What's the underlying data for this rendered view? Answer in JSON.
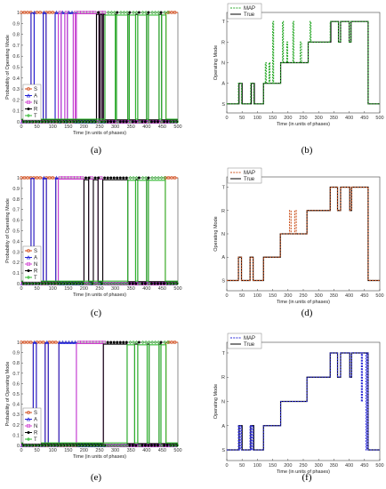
{
  "chart_data": [
    {
      "panel": "(a)",
      "type": "line",
      "xlabel": "Time (in units of phases)",
      "ylabel": "Probability of Operating Mode",
      "xlim": [
        0,
        500
      ],
      "ylim": [
        0,
        1
      ],
      "xticks": [
        "0",
        "50",
        "100",
        "150",
        "200",
        "250",
        "300",
        "350",
        "400",
        "450",
        "500"
      ],
      "yticks": [
        "0",
        "0.1",
        "0.2",
        "0.3",
        "0.4",
        "0.5",
        "0.6",
        "0.7",
        "0.8",
        "0.9",
        "1"
      ],
      "legend_position": "bottom-left",
      "legend": [
        {
          "label": "S",
          "color": "#d04a1a",
          "marker": "circle"
        },
        {
          "label": "A",
          "color": "#1f1fd8",
          "marker": "triangle"
        },
        {
          "label": "N",
          "color": "#d040d0",
          "marker": "square"
        },
        {
          "label": "R",
          "color": "#000000",
          "marker": "dot"
        },
        {
          "label": "T",
          "color": "#2eb82e",
          "marker": "diamond"
        }
      ],
      "mode_segments": [
        [
          0,
          "S"
        ],
        [
          31,
          "A"
        ],
        [
          41,
          "S"
        ],
        [
          70,
          "A"
        ],
        [
          79,
          "S"
        ],
        [
          108,
          "A"
        ],
        [
          118,
          "N"
        ],
        [
          127,
          "A"
        ],
        [
          139,
          "N"
        ],
        [
          147,
          "A"
        ],
        [
          166,
          "N"
        ],
        [
          172,
          "A"
        ],
        [
          176,
          "N"
        ],
        [
          240,
          "R"
        ],
        [
          248,
          "N"
        ],
        [
          252,
          "R"
        ],
        [
          258,
          "N"
        ],
        [
          262,
          "R"
        ],
        [
          267,
          "T"
        ],
        [
          300,
          "R"
        ],
        [
          304,
          "T"
        ],
        [
          340,
          "R"
        ],
        [
          345,
          "T"
        ],
        [
          365,
          "R"
        ],
        [
          372,
          "T"
        ],
        [
          400,
          "R"
        ],
        [
          406,
          "T"
        ],
        [
          440,
          "R"
        ],
        [
          448,
          "T"
        ],
        [
          462,
          "S"
        ],
        [
          500,
          null
        ]
      ]
    },
    {
      "panel": "(b)",
      "type": "line",
      "xlabel": "Time (in units of phases)",
      "ylabel": "Operating Mode",
      "xlim": [
        0,
        500
      ],
      "yticks": [
        "S",
        "A",
        "N",
        "R",
        "T"
      ],
      "xticks": [
        "0",
        "50",
        "100",
        "150",
        "200",
        "250",
        "300",
        "350",
        "400",
        "450",
        "500"
      ],
      "legend_position": "top-left",
      "legend": [
        {
          "label": "MAP",
          "color": "#2eaa2e",
          "style": "dashed"
        },
        {
          "label": "True",
          "color": "#000000",
          "style": "solid"
        }
      ],
      "series": [
        {
          "name": "True",
          "segments": [
            [
              0,
              "S"
            ],
            [
              40,
              "A"
            ],
            [
              50,
              "S"
            ],
            [
              80,
              "A"
            ],
            [
              90,
              "S"
            ],
            [
              120,
              "A"
            ],
            [
              176,
              "N"
            ],
            [
              266,
              "R"
            ],
            [
              340,
              "T"
            ],
            [
              365,
              "R"
            ],
            [
              372,
              "T"
            ],
            [
              400,
              "R"
            ],
            [
              406,
              "T"
            ],
            [
              462,
              "S"
            ],
            [
              500,
              null
            ]
          ]
        },
        {
          "name": "MAP",
          "segments": [
            [
              0,
              "S"
            ],
            [
              38,
              "A"
            ],
            [
              48,
              "S"
            ],
            [
              78,
              "A"
            ],
            [
              88,
              "S"
            ],
            [
              120,
              "A"
            ],
            [
              126,
              "N"
            ],
            [
              129,
              "A"
            ],
            [
              138,
              "N"
            ],
            [
              141,
              "A"
            ],
            [
              150,
              "T"
            ],
            [
              153,
              "A"
            ],
            [
              176,
              "N"
            ],
            [
              182,
              "T"
            ],
            [
              185,
              "N"
            ],
            [
              196,
              "R"
            ],
            [
              199,
              "N"
            ],
            [
              216,
              "T"
            ],
            [
              219,
              "N"
            ],
            [
              240,
              "R"
            ],
            [
              244,
              "N"
            ],
            [
              266,
              "R"
            ],
            [
              272,
              "T"
            ],
            [
              275,
              "R"
            ],
            [
              338,
              "T"
            ],
            [
              365,
              "R"
            ],
            [
              372,
              "T"
            ],
            [
              400,
              "R"
            ],
            [
              406,
              "T"
            ],
            [
              462,
              "S"
            ],
            [
              500,
              null
            ]
          ]
        }
      ]
    },
    {
      "panel": "(c)",
      "type": "line",
      "xlabel": "Time (in units of phases)",
      "ylabel": "Probability of Operating Mode",
      "xlim": [
        0,
        500
      ],
      "ylim": [
        0,
        1
      ],
      "xticks": [
        "0",
        "50",
        "100",
        "150",
        "200",
        "250",
        "300",
        "350",
        "400",
        "450",
        "500"
      ],
      "yticks": [
        "0",
        "0.1",
        "0.2",
        "0.3",
        "0.4",
        "0.5",
        "0.6",
        "0.7",
        "0.8",
        "0.9",
        "1"
      ],
      "legend_position": "bottom-left",
      "legend": [
        {
          "label": "S",
          "color": "#d04a1a",
          "marker": "circle"
        },
        {
          "label": "A",
          "color": "#1f1fd8",
          "marker": "triangle"
        },
        {
          "label": "N",
          "color": "#d040d0",
          "marker": "square"
        },
        {
          "label": "R",
          "color": "#000000",
          "marker": "dot"
        },
        {
          "label": "T",
          "color": "#2eb82e",
          "marker": "diamond"
        }
      ],
      "mode_segments": [
        [
          0,
          "S"
        ],
        [
          31,
          "A"
        ],
        [
          40,
          "S"
        ],
        [
          70,
          "A"
        ],
        [
          80,
          "S"
        ],
        [
          110,
          "A"
        ],
        [
          118,
          "N"
        ],
        [
          200,
          "R"
        ],
        [
          215,
          "N"
        ],
        [
          230,
          "R"
        ],
        [
          245,
          "N"
        ],
        [
          260,
          "R"
        ],
        [
          340,
          "T"
        ],
        [
          365,
          "R"
        ],
        [
          372,
          "T"
        ],
        [
          400,
          "R"
        ],
        [
          406,
          "T"
        ],
        [
          460,
          "S"
        ],
        [
          500,
          null
        ]
      ]
    },
    {
      "panel": "(d)",
      "type": "line",
      "xlabel": "Time (in units of phases)",
      "ylabel": "Operating Mode",
      "xlim": [
        0,
        500
      ],
      "yticks": [
        "S",
        "A",
        "N",
        "R",
        "T"
      ],
      "xticks": [
        "0",
        "50",
        "100",
        "150",
        "200",
        "250",
        "300",
        "350",
        "400",
        "450",
        "500"
      ],
      "legend_position": "top-left",
      "legend": [
        {
          "label": "MAP",
          "color": "#cc5522",
          "style": "dashed"
        },
        {
          "label": "True",
          "color": "#000000",
          "style": "solid"
        }
      ],
      "series": [
        {
          "name": "True",
          "segments": [
            [
              0,
              "S"
            ],
            [
              38,
              "A"
            ],
            [
              48,
              "S"
            ],
            [
              76,
              "A"
            ],
            [
              86,
              "S"
            ],
            [
              120,
              "A"
            ],
            [
              175,
              "N"
            ],
            [
              262,
              "R"
            ],
            [
              338,
              "T"
            ],
            [
              362,
              "R"
            ],
            [
              372,
              "T"
            ],
            [
              402,
              "R"
            ],
            [
              408,
              "T"
            ],
            [
              462,
              "S"
            ],
            [
              500,
              null
            ]
          ]
        },
        {
          "name": "MAP",
          "segments": [
            [
              0,
              "S"
            ],
            [
              38,
              "A"
            ],
            [
              48,
              "S"
            ],
            [
              76,
              "A"
            ],
            [
              86,
              "S"
            ],
            [
              120,
              "A"
            ],
            [
              175,
              "N"
            ],
            [
              205,
              "R"
            ],
            [
              210,
              "N"
            ],
            [
              222,
              "R"
            ],
            [
              227,
              "N"
            ],
            [
              262,
              "R"
            ],
            [
              338,
              "T"
            ],
            [
              362,
              "R"
            ],
            [
              372,
              "T"
            ],
            [
              402,
              "R"
            ],
            [
              408,
              "T"
            ],
            [
              462,
              "S"
            ],
            [
              500,
              null
            ]
          ]
        }
      ]
    },
    {
      "panel": "(e)",
      "type": "line",
      "xlabel": "Time (in units of phases)",
      "ylabel": "Probability of Operating Mode",
      "xlim": [
        0,
        500
      ],
      "ylim": [
        0,
        1
      ],
      "xticks": [
        "0",
        "50",
        "100",
        "150",
        "200",
        "250",
        "300",
        "350",
        "400",
        "450",
        "500"
      ],
      "yticks": [
        "0",
        "0.1",
        "0.2",
        "0.3",
        "0.4",
        "0.5",
        "0.6",
        "0.7",
        "0.8",
        "0.9",
        "1"
      ],
      "legend_position": "bottom-left",
      "legend": [
        {
          "label": "S",
          "color": "#d04a1a",
          "marker": "circle"
        },
        {
          "label": "A",
          "color": "#1f1fd8",
          "marker": "triangle"
        },
        {
          "label": "N",
          "color": "#d040d0",
          "marker": "square"
        },
        {
          "label": "R",
          "color": "#000000",
          "marker": "dot"
        },
        {
          "label": "T",
          "color": "#2eb82e",
          "marker": "diamond"
        }
      ],
      "mode_segments": [
        [
          0,
          "S"
        ],
        [
          38,
          "A"
        ],
        [
          48,
          "S"
        ],
        [
          76,
          "A"
        ],
        [
          86,
          "S"
        ],
        [
          120,
          "A"
        ],
        [
          176,
          "N"
        ],
        [
          262,
          "R"
        ],
        [
          338,
          "T"
        ],
        [
          362,
          "R"
        ],
        [
          372,
          "T"
        ],
        [
          402,
          "R"
        ],
        [
          408,
          "T"
        ],
        [
          440,
          "R"
        ],
        [
          446,
          "T"
        ],
        [
          462,
          "S"
        ],
        [
          500,
          null
        ]
      ]
    },
    {
      "panel": "(f)",
      "type": "line",
      "xlabel": "Time (in units of phases)",
      "ylabel": "Operating Mode",
      "xlim": [
        0,
        500
      ],
      "yticks": [
        "S",
        "A",
        "N",
        "R",
        "T"
      ],
      "xticks": [
        "0",
        "50",
        "100",
        "150",
        "200",
        "250",
        "300",
        "350",
        "400",
        "450",
        "500"
      ],
      "legend_position": "top-left",
      "legend": [
        {
          "label": "MAP",
          "color": "#2b2bd8",
          "style": "dashed"
        },
        {
          "label": "True",
          "color": "#000000",
          "style": "solid"
        }
      ],
      "series": [
        {
          "name": "True",
          "segments": [
            [
              0,
              "S"
            ],
            [
              40,
              "A"
            ],
            [
              50,
              "S"
            ],
            [
              78,
              "A"
            ],
            [
              88,
              "S"
            ],
            [
              120,
              "A"
            ],
            [
              176,
              "N"
            ],
            [
              262,
              "R"
            ],
            [
              338,
              "T"
            ],
            [
              362,
              "R"
            ],
            [
              372,
              "T"
            ],
            [
              402,
              "R"
            ],
            [
              408,
              "T"
            ],
            [
              462,
              "S"
            ],
            [
              500,
              null
            ]
          ]
        },
        {
          "name": "MAP",
          "segments": [
            [
              0,
              "S"
            ],
            [
              38,
              "A"
            ],
            [
              41,
              "S"
            ],
            [
              44,
              "A"
            ],
            [
              48,
              "S"
            ],
            [
              76,
              "A"
            ],
            [
              79,
              "S"
            ],
            [
              82,
              "A"
            ],
            [
              86,
              "S"
            ],
            [
              120,
              "A"
            ],
            [
              176,
              "N"
            ],
            [
              262,
              "R"
            ],
            [
              338,
              "T"
            ],
            [
              362,
              "R"
            ],
            [
              372,
              "T"
            ],
            [
              402,
              "R"
            ],
            [
              408,
              "T"
            ],
            [
              440,
              "N"
            ],
            [
              443,
              "T"
            ],
            [
              455,
              "S"
            ],
            [
              458,
              "T"
            ],
            [
              462,
              "S"
            ],
            [
              500,
              null
            ]
          ]
        }
      ]
    }
  ]
}
